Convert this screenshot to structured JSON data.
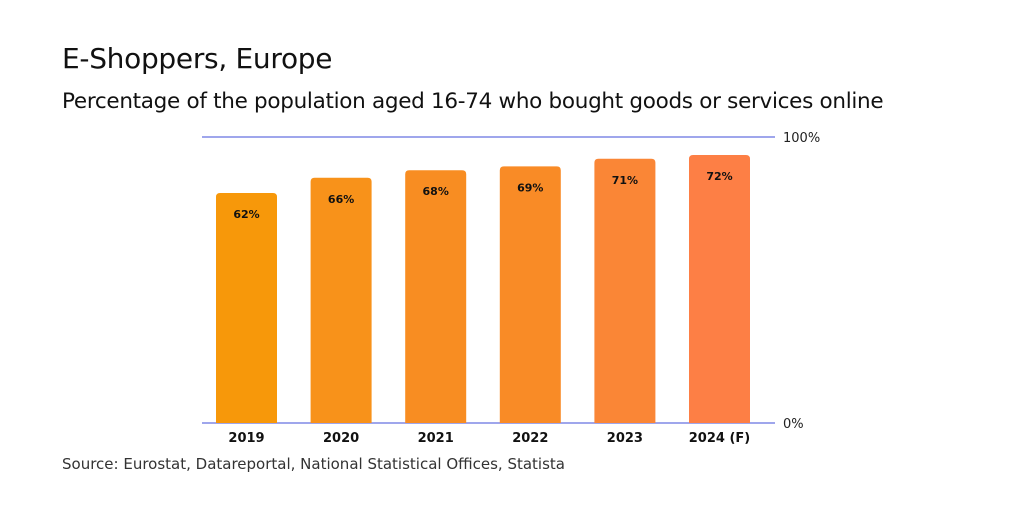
{
  "chart_data": {
    "type": "bar",
    "title": "E-Shoppers, Europe",
    "subtitle": "Percentage of the population aged 16-74 who bought goods or services online",
    "categories": [
      "2019",
      "2020",
      "2021",
      "2022",
      "2023",
      "2024 (F)"
    ],
    "values": [
      62,
      66,
      68,
      69,
      71,
      72
    ],
    "data_labels": [
      "62%",
      "66%",
      "68%",
      "69%",
      "71%",
      "72%"
    ],
    "bar_colors": [
      "#F7980A",
      "#F8921A",
      "#F88D22",
      "#F98B26",
      "#FA8636",
      "#FD7F45"
    ],
    "yticks": [
      {
        "value": 0,
        "label": "0%"
      },
      {
        "value": 100,
        "label": "100%"
      }
    ],
    "ylim": [
      0,
      100
    ],
    "gridline_color": "#6670E0",
    "grid": false,
    "source": "Source: Eurostat, Datareportal, National Statistical Offices, Statista"
  }
}
